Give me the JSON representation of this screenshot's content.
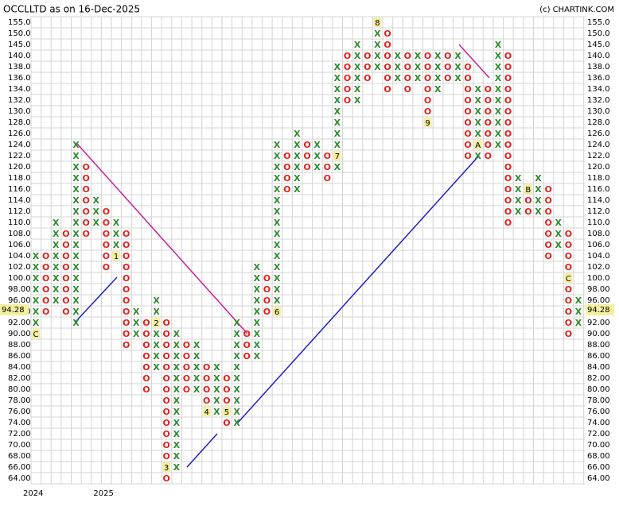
{
  "chart_data": {
    "type": "point-and-figure",
    "title": "OCCLLTD as on 16-Dec-2025",
    "credit": "(c) CHARTINK.COM",
    "x_color": "#2e8b2e",
    "o_color": "#e0201b",
    "marker_color": "#f5f0a0",
    "yticks": [
      {
        "value": 155,
        "label": "155.0"
      },
      {
        "value": 150,
        "label": "150.0"
      },
      {
        "value": 145,
        "label": "145.0"
      },
      {
        "value": 140,
        "label": "140.0"
      },
      {
        "value": 138,
        "label": "138.0"
      },
      {
        "value": 136,
        "label": "136.0"
      },
      {
        "value": 134,
        "label": "134.0"
      },
      {
        "value": 132,
        "label": "132.0"
      },
      {
        "value": 130,
        "label": "130.0"
      },
      {
        "value": 128,
        "label": "128.0"
      },
      {
        "value": 126,
        "label": "126.0"
      },
      {
        "value": 124,
        "label": "124.0"
      },
      {
        "value": 122,
        "label": "122.0"
      },
      {
        "value": 120,
        "label": "120.0"
      },
      {
        "value": 118,
        "label": "118.0"
      },
      {
        "value": 116,
        "label": "116.0"
      },
      {
        "value": 114,
        "label": "114.0"
      },
      {
        "value": 112,
        "label": "112.0"
      },
      {
        "value": 110,
        "label": "110.0"
      },
      {
        "value": 108,
        "label": "108.0"
      },
      {
        "value": 106,
        "label": "106.0"
      },
      {
        "value": 104,
        "label": "104.0"
      },
      {
        "value": 102,
        "label": "102.0"
      },
      {
        "value": 100,
        "label": "100.0"
      },
      {
        "value": 98,
        "label": "98.00"
      },
      {
        "value": 96,
        "label": "96.00"
      },
      {
        "value": 94,
        "label": "94.00"
      },
      {
        "value": 92,
        "label": "92.00"
      },
      {
        "value": 90,
        "label": "90.00"
      },
      {
        "value": 88,
        "label": "88.00"
      },
      {
        "value": 86,
        "label": "86.00"
      },
      {
        "value": 84,
        "label": "84.00"
      },
      {
        "value": 82,
        "label": "82.00"
      },
      {
        "value": 80,
        "label": "80.00"
      },
      {
        "value": 78,
        "label": "78.00"
      },
      {
        "value": 76,
        "label": "76.00"
      },
      {
        "value": 74,
        "label": "74.00"
      },
      {
        "value": 72,
        "label": "72.00"
      },
      {
        "value": 70,
        "label": "70.00"
      },
      {
        "value": 68,
        "label": "68.00"
      },
      {
        "value": 66,
        "label": "66.00"
      },
      {
        "value": 64,
        "label": "64.00"
      }
    ],
    "columns": [
      {
        "kind": "X",
        "low": 90,
        "high": 104
      },
      {
        "kind": "O",
        "low": 94,
        "high": 104
      },
      {
        "kind": "X",
        "low": 96,
        "high": 110
      },
      {
        "kind": "O",
        "low": 94,
        "high": 108
      },
      {
        "kind": "X",
        "low": 92,
        "high": 124
      },
      {
        "kind": "O",
        "low": 108,
        "high": 120
      },
      {
        "kind": "X",
        "low": 110,
        "high": 114
      },
      {
        "kind": "O",
        "low": 102,
        "high": 112
      },
      {
        "kind": "X",
        "low": 104,
        "high": 110
      },
      {
        "kind": "O",
        "low": 88,
        "high": 108
      },
      {
        "kind": "X",
        "low": 90,
        "high": 94
      },
      {
        "kind": "O",
        "low": 80,
        "high": 92
      },
      {
        "kind": "X",
        "low": 84,
        "high": 96
      },
      {
        "kind": "O",
        "low": 64,
        "high": 92
      },
      {
        "kind": "X",
        "low": 66,
        "high": 90
      },
      {
        "kind": "O",
        "low": 80,
        "high": 88
      },
      {
        "kind": "X",
        "low": 80,
        "high": 88
      },
      {
        "kind": "O",
        "low": 76,
        "high": 84
      },
      {
        "kind": "X",
        "low": 76,
        "high": 84
      },
      {
        "kind": "O",
        "low": 74,
        "high": 82
      },
      {
        "kind": "X",
        "low": 74,
        "high": 92
      },
      {
        "kind": "O",
        "low": 86,
        "high": 90
      },
      {
        "kind": "X",
        "low": 86,
        "high": 102
      },
      {
        "kind": "O",
        "low": 94,
        "high": 100
      },
      {
        "kind": "X",
        "low": 94,
        "high": 124
      },
      {
        "kind": "O",
        "low": 116,
        "high": 122
      },
      {
        "kind": "X",
        "low": 116,
        "high": 126
      },
      {
        "kind": "O",
        "low": 120,
        "high": 124
      },
      {
        "kind": "X",
        "low": 120,
        "high": 124
      },
      {
        "kind": "O",
        "low": 118,
        "high": 122
      },
      {
        "kind": "X",
        "low": 120,
        "high": 138
      },
      {
        "kind": "O",
        "low": 132,
        "high": 140
      },
      {
        "kind": "X",
        "low": 132,
        "high": 145
      },
      {
        "kind": "O",
        "low": 136,
        "high": 140
      },
      {
        "kind": "X",
        "low": 138,
        "high": 155
      },
      {
        "kind": "O",
        "low": 134,
        "high": 150
      },
      {
        "kind": "X",
        "low": 136,
        "high": 140
      },
      {
        "kind": "O",
        "low": 134,
        "high": 140
      },
      {
        "kind": "X",
        "low": 136,
        "high": 140
      },
      {
        "kind": "O",
        "low": 128,
        "high": 140
      },
      {
        "kind": "X",
        "low": 134,
        "high": 140
      },
      {
        "kind": "O",
        "low": 136,
        "high": 140
      },
      {
        "kind": "X",
        "low": 136,
        "high": 140
      },
      {
        "kind": "O",
        "low": 122,
        "high": 138
      },
      {
        "kind": "X",
        "low": 122,
        "high": 134
      },
      {
        "kind": "O",
        "low": 122,
        "high": 134
      },
      {
        "kind": "X",
        "low": 124,
        "high": 145
      },
      {
        "kind": "O",
        "low": 110,
        "high": 140
      },
      {
        "kind": "X",
        "low": 112,
        "high": 118
      },
      {
        "kind": "O",
        "low": 112,
        "high": 116
      },
      {
        "kind": "X",
        "low": 112,
        "high": 118
      },
      {
        "kind": "O",
        "low": 104,
        "high": 116
      },
      {
        "kind": "X",
        "low": 106,
        "high": 110
      },
      {
        "kind": "O",
        "low": 90,
        "high": 108
      },
      {
        "kind": "X",
        "low": 92,
        "high": 96
      }
    ],
    "month_markers": [
      {
        "column": 0,
        "value": 90,
        "label": "C"
      },
      {
        "column": 8,
        "value": 104,
        "label": "1"
      },
      {
        "column": 12,
        "value": 92,
        "label": "2"
      },
      {
        "column": 13,
        "value": 66,
        "label": "3"
      },
      {
        "column": 17,
        "value": 76,
        "label": "4"
      },
      {
        "column": 19,
        "value": 76,
        "label": "5"
      },
      {
        "column": 24,
        "value": 94,
        "label": "6"
      },
      {
        "column": 30,
        "value": 122,
        "label": "7"
      },
      {
        "column": 34,
        "value": 155,
        "label": "8"
      },
      {
        "column": 39,
        "value": 128,
        "label": "9"
      },
      {
        "column": 44,
        "value": 124,
        "label": "A"
      },
      {
        "column": 49,
        "value": 116,
        "label": "B"
      },
      {
        "column": 53,
        "value": 100,
        "label": "C"
      }
    ],
    "years": [
      {
        "column": 0,
        "label": "2024"
      },
      {
        "column": 7,
        "label": "2025"
      }
    ],
    "last_price": 94.28
  }
}
